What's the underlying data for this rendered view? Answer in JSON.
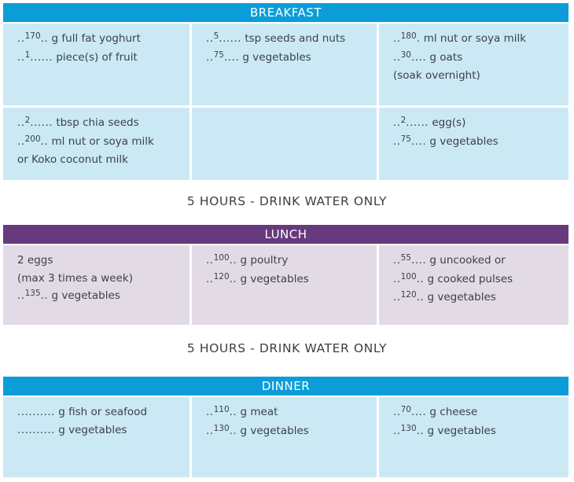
{
  "breakfast": {
    "title": "BREAKFAST",
    "cells": [
      {
        "lines": [
          {
            "pre": "..",
            "qty": "170",
            "post": "..",
            "text": " g full fat yoghurt"
          },
          {
            "pre": "..",
            "qty": "1",
            "post": "......",
            "text": " piece(s) of fruit"
          }
        ]
      },
      {
        "lines": [
          {
            "pre": "..",
            "qty": "5",
            "post": "......",
            "text": " tsp seeds and nuts"
          },
          {
            "pre": "..",
            "qty": "75",
            "post": "....",
            "text": " g vegetables"
          }
        ]
      },
      {
        "lines": [
          {
            "pre": "..",
            "qty": "180",
            "post": ".",
            "text": " ml nut or soya milk"
          },
          {
            "pre": "..",
            "qty": "30",
            "post": "....",
            "text": " g oats"
          },
          {
            "pre": "",
            "qty": "",
            "post": "",
            "text": "(soak overnight)"
          }
        ]
      },
      {
        "lines": [
          {
            "pre": "..",
            "qty": "2",
            "post": "......",
            "text": " tbsp chia seeds"
          },
          {
            "pre": "..",
            "qty": "200",
            "post": "..",
            "text": " ml nut or soya milk"
          },
          {
            "pre": "",
            "qty": "",
            "post": "",
            "text": "or Koko coconut milk"
          }
        ]
      },
      {
        "lines": []
      },
      {
        "lines": [
          {
            "pre": "..",
            "qty": "2",
            "post": "......",
            "text": " egg(s)"
          },
          {
            "pre": "..",
            "qty": "75",
            "post": "....",
            "text": " g vegetables"
          }
        ]
      }
    ]
  },
  "divider_1": "5 HOURS - DRINK WATER ONLY",
  "lunch": {
    "title": "LUNCH",
    "cells": [
      {
        "lines": [
          {
            "pre": "",
            "qty": "",
            "post": "",
            "text": "2 eggs"
          },
          {
            "pre": "",
            "qty": "",
            "post": "",
            "text": "(max 3 times a week)"
          },
          {
            "pre": "..",
            "qty": "135",
            "post": "..",
            "text": " g vegetables"
          }
        ]
      },
      {
        "lines": [
          {
            "pre": "..",
            "qty": "100",
            "post": "..",
            "text": " g poultry"
          },
          {
            "pre": "..",
            "qty": "120",
            "post": "..",
            "text": " g vegetables"
          }
        ]
      },
      {
        "lines": [
          {
            "pre": "..",
            "qty": "55",
            "post": "....",
            "text": " g uncooked or"
          },
          {
            "pre": "..",
            "qty": "100",
            "post": "..",
            "text": " g cooked pulses"
          },
          {
            "pre": "..",
            "qty": "120",
            "post": "..",
            "text": " g vegetables"
          }
        ]
      }
    ]
  },
  "divider_2": "5 HOURS - DRINK WATER ONLY",
  "dinner": {
    "title": "DINNER",
    "cells": [
      {
        "lines": [
          {
            "pre": "",
            "qty": "",
            "post": "..........",
            "text": " g fish or seafood"
          },
          {
            "pre": "",
            "qty": "",
            "post": "..........",
            "text": " g vegetables"
          }
        ]
      },
      {
        "lines": [
          {
            "pre": "..",
            "qty": "110",
            "post": "..",
            "text": " g meat"
          },
          {
            "pre": "..",
            "qty": "130",
            "post": "..",
            "text": " g vegetables"
          }
        ]
      },
      {
        "lines": [
          {
            "pre": "..",
            "qty": "70",
            "post": "....",
            "text": " g cheese"
          },
          {
            "pre": "..",
            "qty": "130",
            "post": "..",
            "text": " g vegetables"
          }
        ]
      }
    ]
  }
}
